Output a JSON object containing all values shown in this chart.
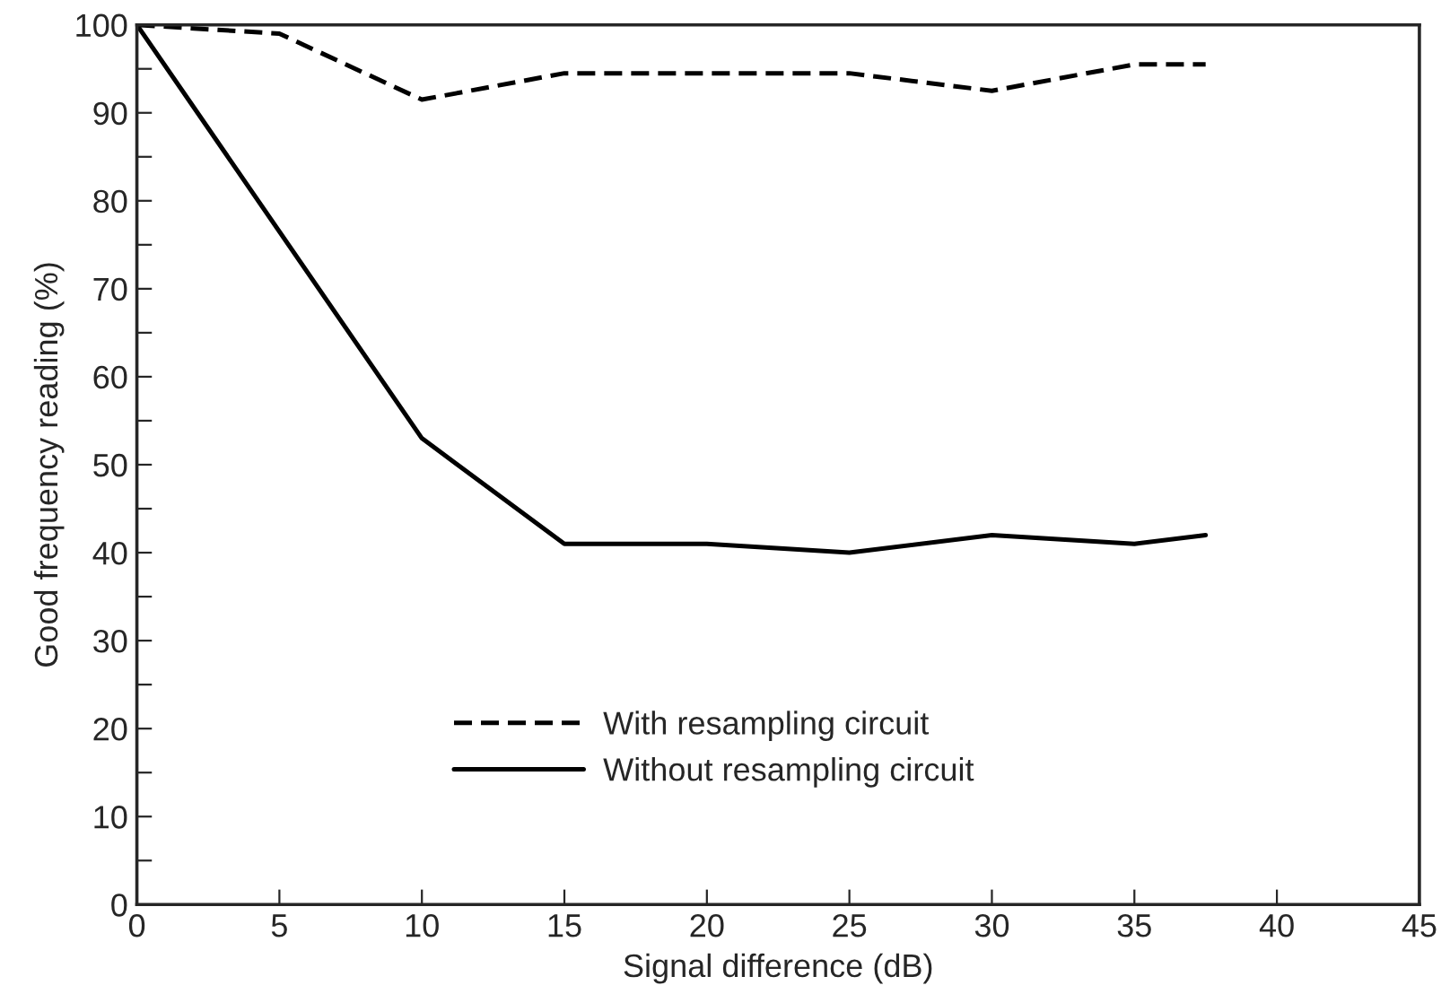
{
  "chart_data": {
    "type": "line",
    "xlabel": "Signal difference (dB)",
    "ylabel": "Good frequency reading (%)",
    "xlim": [
      0,
      45
    ],
    "xticks": [
      0,
      5,
      10,
      15,
      20,
      25,
      30,
      35,
      40,
      45
    ],
    "ylim": [
      0,
      100
    ],
    "yticks": [
      0,
      {
        "value": 5,
        "label": null
      },
      10,
      {
        "value": 15,
        "label": null
      },
      20,
      {
        "value": 25,
        "label": null
      },
      30,
      {
        "value": 35,
        "label": null
      },
      40,
      {
        "value": 45,
        "label": null
      },
      50,
      {
        "value": 55,
        "label": null
      },
      60,
      {
        "value": 65,
        "label": null
      },
      70,
      {
        "value": 75,
        "label": null
      },
      80,
      {
        "value": 85,
        "label": null
      },
      90,
      {
        "value": 95,
        "label": null
      },
      100
    ],
    "grid": false,
    "legend": "bottom",
    "marker": "none",
    "series": [
      {
        "name": "With resampling circuit",
        "color": "#000000",
        "line_style": "dashed",
        "x": [
          0,
          5,
          10,
          15,
          20,
          25,
          30,
          35,
          37.5
        ],
        "values": [
          100,
          99,
          91.5,
          94.5,
          94.5,
          94.5,
          92.5,
          95.5,
          95.5
        ]
      },
      {
        "name": "Without resampling circuit",
        "color": "#000000",
        "line_style": "solid",
        "x": [
          0,
          10,
          15,
          20,
          25,
          30,
          35,
          37.5
        ],
        "values": [
          100,
          53,
          41,
          41,
          40,
          42,
          41,
          42
        ]
      }
    ]
  }
}
